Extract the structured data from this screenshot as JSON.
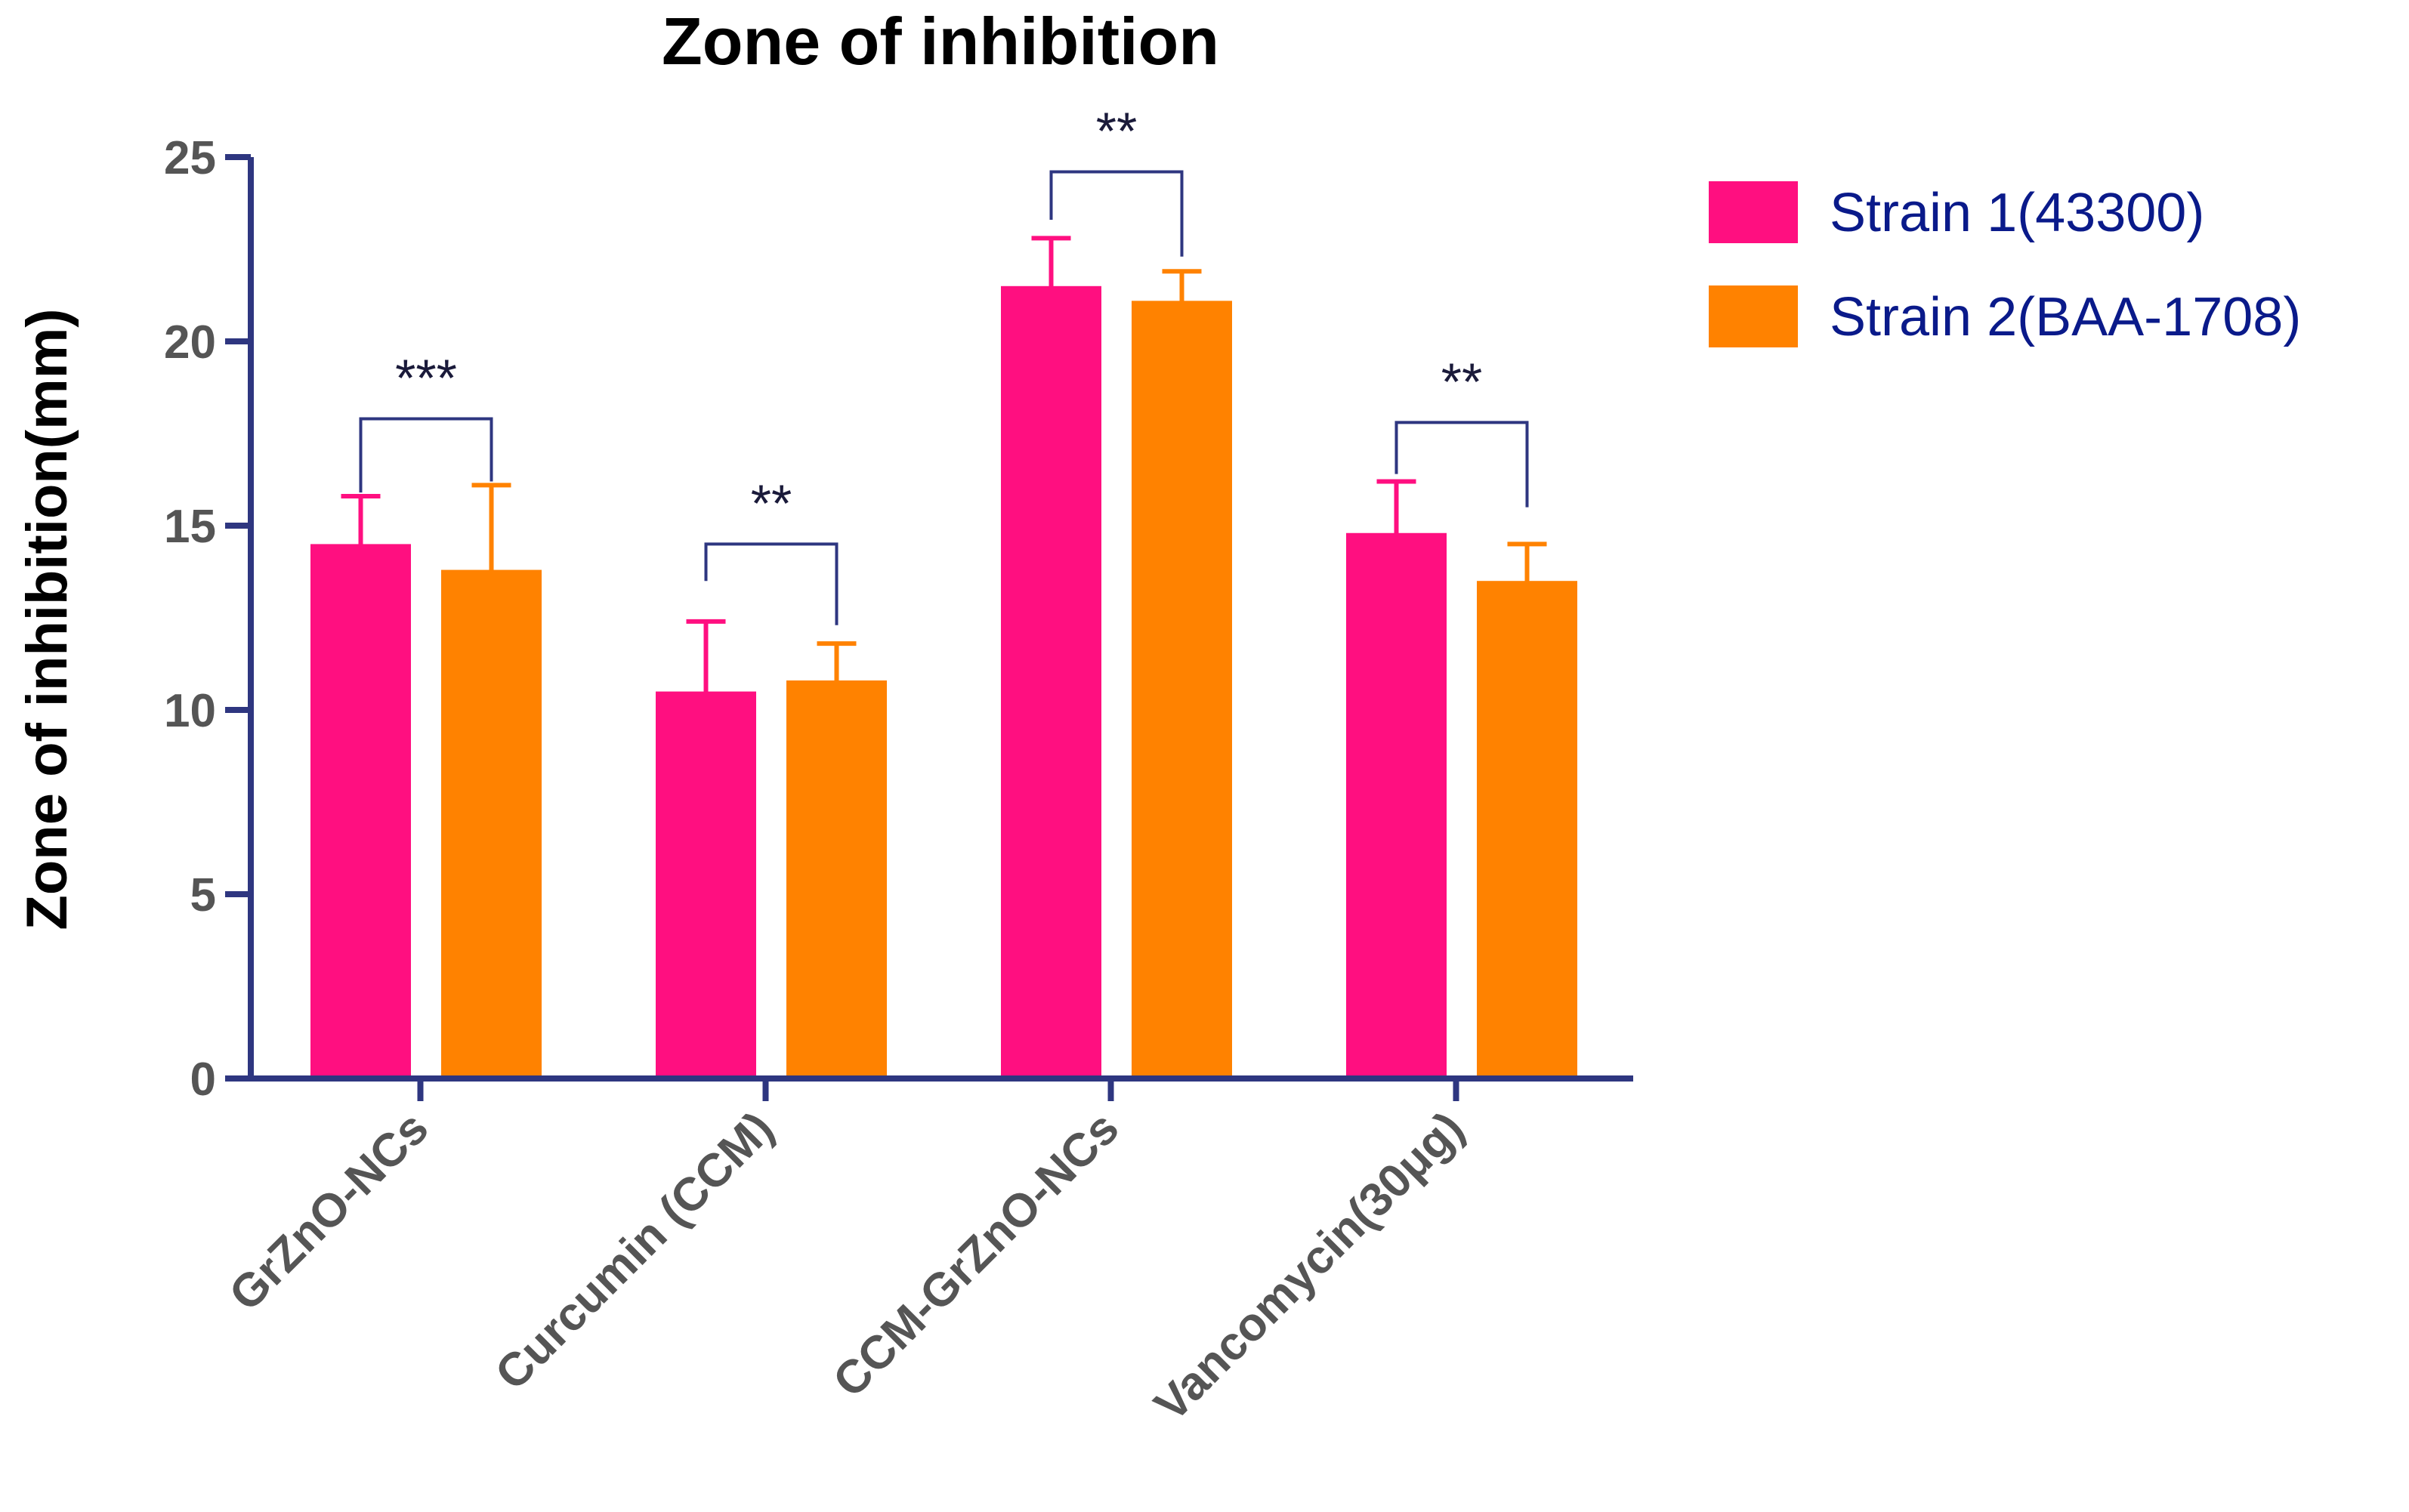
{
  "chart_data": {
    "type": "bar",
    "title": "Zone of inhibition",
    "xlabel": "",
    "ylabel": "Zone of inhibition(mm)",
    "ylim": [
      0,
      25
    ],
    "yticks": [
      0,
      5,
      10,
      15,
      20,
      25
    ],
    "categories": [
      "GrZnO-NCs",
      "Curcumin (CCM)",
      "CCM-GrZnO-NCs",
      "Vancomycin(30μg)"
    ],
    "series": [
      {
        "name": "Strain 1(43300)",
        "color": "#ff0f80",
        "values": [
          14.5,
          10.5,
          21.5,
          14.8
        ],
        "errors": [
          1.3,
          1.9,
          1.3,
          1.4
        ]
      },
      {
        "name": "Strain 2(BAA-1708)",
        "color": "#ff8200",
        "values": [
          13.8,
          10.8,
          21.1,
          13.5
        ],
        "errors": [
          2.3,
          1.0,
          0.8,
          1.0
        ]
      }
    ],
    "significance": [
      {
        "category": "GrZnO-NCs",
        "label": "***",
        "left_y": 15.9,
        "right_y": 16.2,
        "bracket_y": 17.9
      },
      {
        "category": "Curcumin (CCM)",
        "label": "**",
        "left_y": 13.5,
        "right_y": 12.3,
        "bracket_y": 14.5
      },
      {
        "category": "CCM-GrZnO-NCs",
        "label": "**",
        "left_y": 23.3,
        "right_y": 22.3,
        "bracket_y": 24.6
      },
      {
        "category": "Vancomycin(30μg)",
        "label": "**",
        "left_y": 16.4,
        "right_y": 15.5,
        "bracket_y": 17.8
      }
    ],
    "legend_position": "top-right",
    "grid": false,
    "axis_color": "#2e3680"
  }
}
